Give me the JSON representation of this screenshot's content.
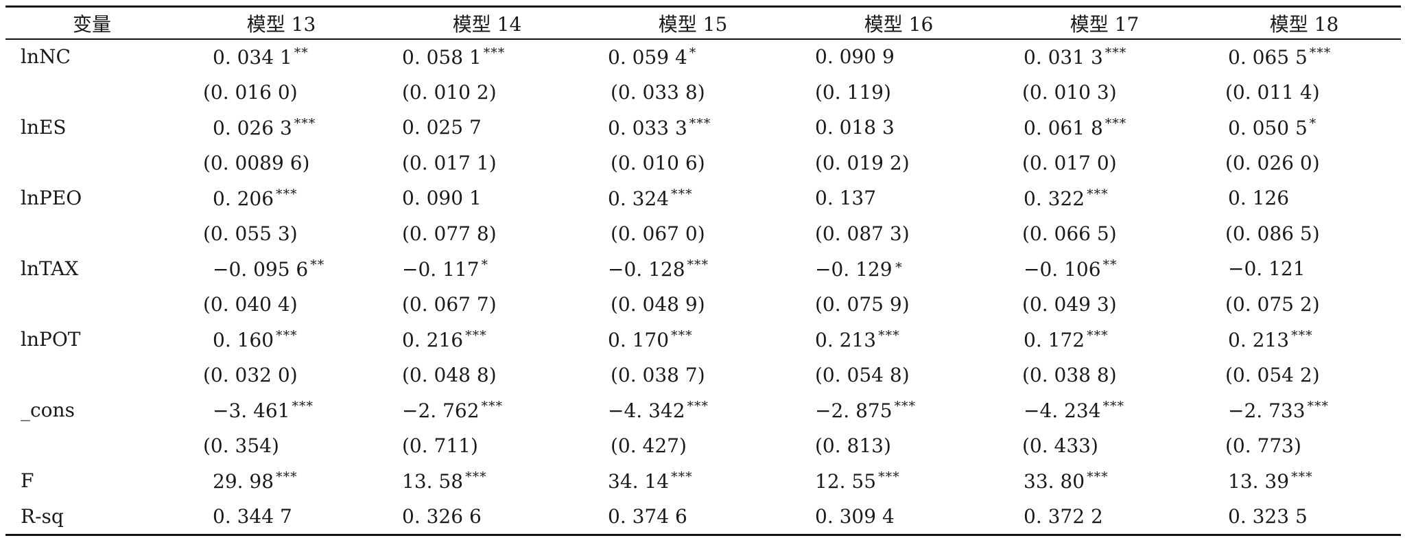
{
  "table": {
    "header": [
      "变量",
      "模型 13",
      "模型 14",
      "模型 15",
      "模型 16",
      "模型 17",
      "模型 18"
    ],
    "rows": [
      {
        "label": "lnNC",
        "coef": [
          {
            "v": "0. 034 1",
            "s": "**"
          },
          {
            "v": "0. 058 1",
            "s": "***"
          },
          {
            "v": "0. 059 4",
            "s": "*"
          },
          {
            "v": "0. 090 9",
            "s": ""
          },
          {
            "v": "0. 031 3",
            "s": "***"
          },
          {
            "v": "0. 065 5",
            "s": "***"
          }
        ],
        "se": [
          "(0. 016 0)",
          "(0. 010 2)",
          "(0. 033 8)",
          "(0. 119)",
          "(0. 010 3)",
          "(0. 011 4)"
        ]
      },
      {
        "label": "lnES",
        "coef": [
          {
            "v": "0. 026 3",
            "s": "***"
          },
          {
            "v": "0. 025 7",
            "s": ""
          },
          {
            "v": "0. 033 3",
            "s": "***"
          },
          {
            "v": "0. 018 3",
            "s": ""
          },
          {
            "v": "0. 061 8",
            "s": "***"
          },
          {
            "v": "0. 050 5",
            "s": "*"
          }
        ],
        "se": [
          "(0. 0089 6)",
          "(0. 017 1)",
          "(0. 010 6)",
          "(0. 019 2)",
          "(0. 017 0)",
          "(0. 026 0)"
        ]
      },
      {
        "label": "lnPEO",
        "coef": [
          {
            "v": "0. 206",
            "s": "***"
          },
          {
            "v": "0. 090 1",
            "s": ""
          },
          {
            "v": "0. 324",
            "s": "***"
          },
          {
            "v": "0. 137",
            "s": ""
          },
          {
            "v": "0. 322",
            "s": "***"
          },
          {
            "v": "0. 126",
            "s": ""
          }
        ],
        "se": [
          "(0. 055 3)",
          "(0. 077 8)",
          "(0. 067 0)",
          "(0. 087 3)",
          "(0. 066 5)",
          "(0. 086 5)"
        ]
      },
      {
        "label": "lnTAX",
        "coef": [
          {
            "v": "−0. 095 6",
            "s": "**"
          },
          {
            "v": "−0. 117",
            "s": "*"
          },
          {
            "v": "−0. 128",
            "s": "***"
          },
          {
            "v": "−0. 129",
            "s": "∗"
          },
          {
            "v": "−0. 106",
            "s": "**"
          },
          {
            "v": "−0. 121",
            "s": ""
          }
        ],
        "se": [
          "(0. 040 4)",
          "(0. 067 7)",
          "(0. 048 9)",
          "(0. 075 9)",
          "(0. 049 3)",
          "(0. 075 2)"
        ]
      },
      {
        "label": "lnPOT",
        "coef": [
          {
            "v": "0. 160",
            "s": "***"
          },
          {
            "v": "0. 216",
            "s": "***"
          },
          {
            "v": "0. 170",
            "s": "***"
          },
          {
            "v": "0. 213",
            "s": "***"
          },
          {
            "v": "0. 172",
            "s": "***"
          },
          {
            "v": "0. 213",
            "s": "***"
          }
        ],
        "se": [
          "(0. 032 0)",
          "(0. 048 8)",
          "(0. 038 7)",
          "(0. 054 8)",
          "(0. 038 8)",
          "(0. 054 2)"
        ]
      },
      {
        "label": "_cons",
        "coef": [
          {
            "v": "−3. 461",
            "s": "***"
          },
          {
            "v": "−2. 762",
            "s": "***"
          },
          {
            "v": "−4. 342",
            "s": "***"
          },
          {
            "v": "−2. 875",
            "s": "***"
          },
          {
            "v": "−4. 234",
            "s": "***"
          },
          {
            "v": "−2. 733",
            "s": "***"
          }
        ],
        "se": [
          "(0. 354)",
          "(0. 711)",
          "(0. 427)",
          "(0. 813)",
          "(0. 433)",
          "(0. 773)"
        ]
      },
      {
        "label": "F",
        "coef": [
          {
            "v": "29. 98",
            "s": "***"
          },
          {
            "v": "13. 58",
            "s": "***"
          },
          {
            "v": "34. 14",
            "s": "***"
          },
          {
            "v": "12. 55",
            "s": "***"
          },
          {
            "v": "33. 80",
            "s": "***"
          },
          {
            "v": "13. 39",
            "s": "***"
          }
        ]
      },
      {
        "label": "R-sq",
        "coef": [
          {
            "v": "0. 344 7",
            "s": ""
          },
          {
            "v": "0. 326 6",
            "s": ""
          },
          {
            "v": "0. 374 6",
            "s": ""
          },
          {
            "v": "0. 309 4",
            "s": ""
          },
          {
            "v": "0. 372 2",
            "s": ""
          },
          {
            "v": "0. 323 5",
            "s": ""
          }
        ]
      }
    ]
  }
}
